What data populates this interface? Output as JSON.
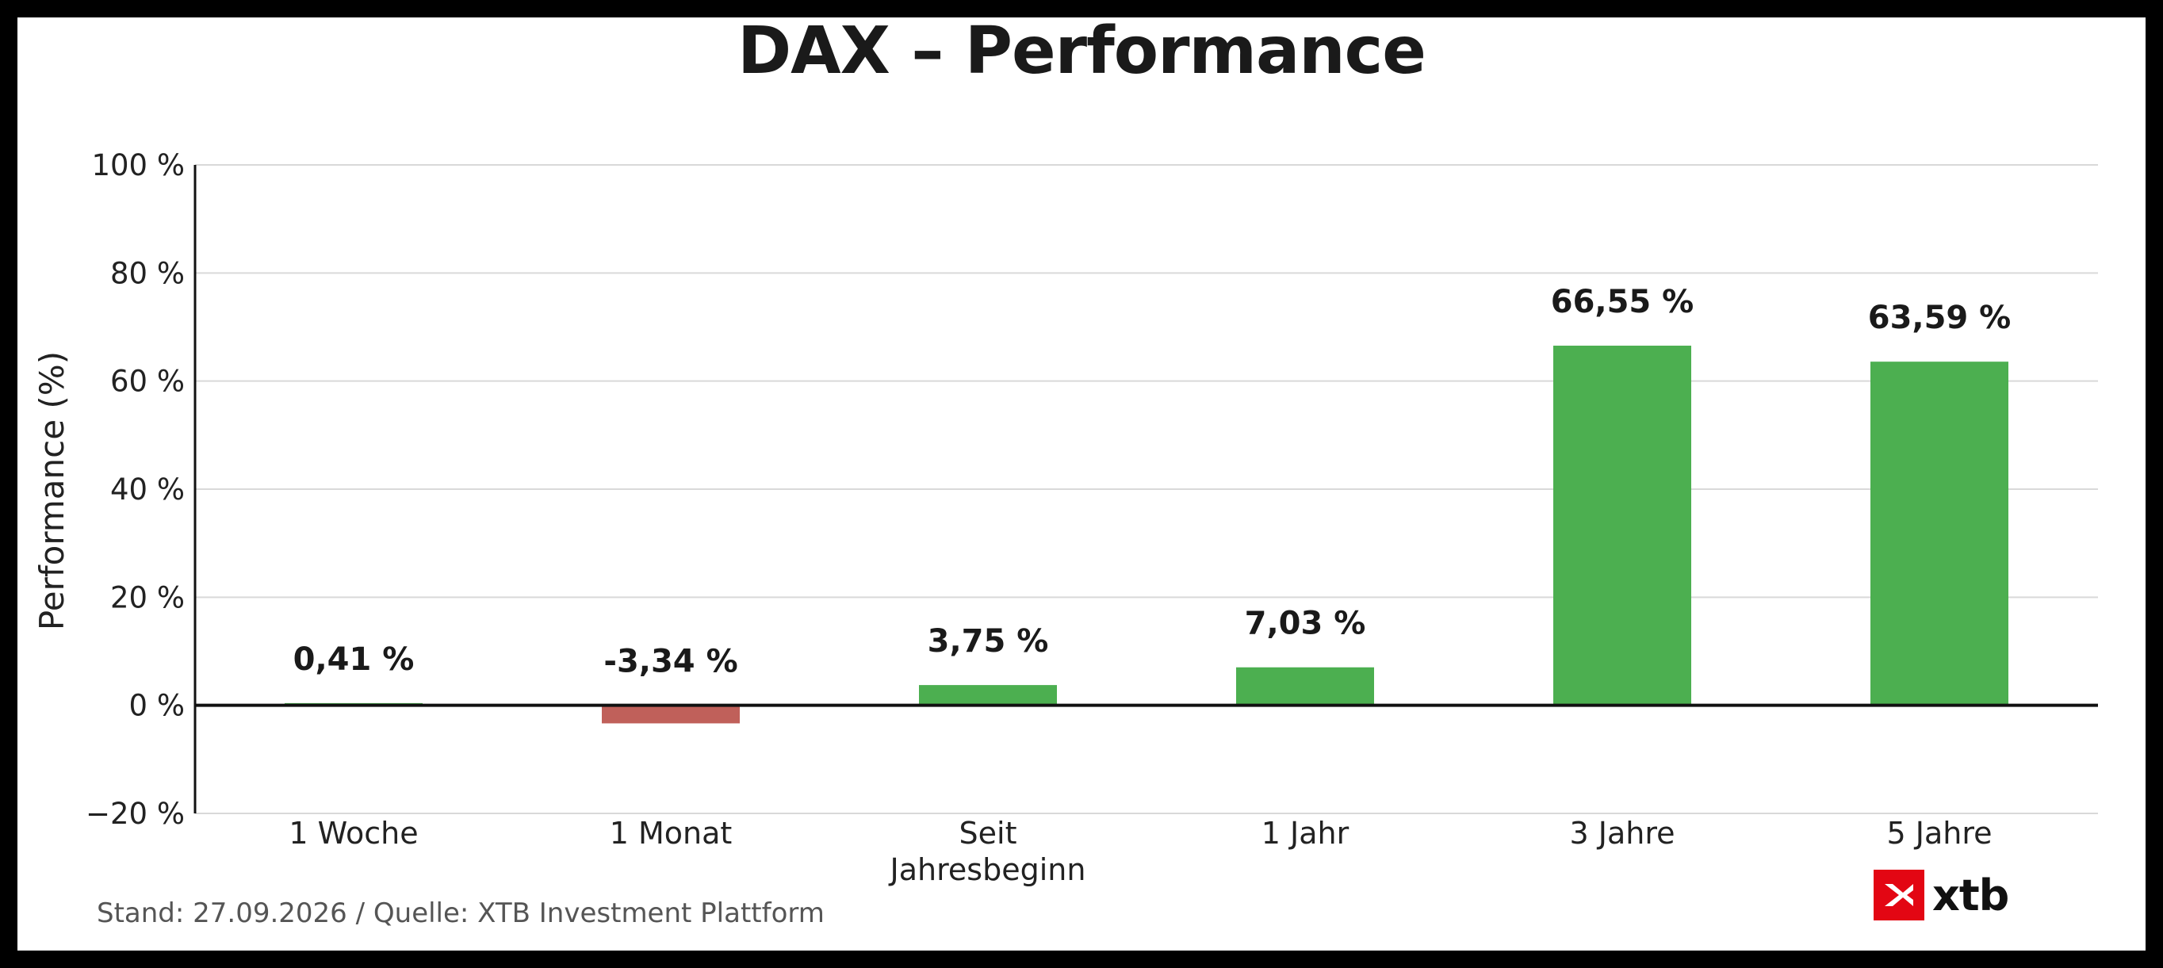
{
  "chart_data": {
    "type": "bar",
    "title": "DAX – Performance",
    "ylabel": "Performance (%)",
    "xlabel": "",
    "categories": [
      [
        "1 Woche"
      ],
      [
        "1 Monat"
      ],
      [
        "Seit",
        "Jahresbeginn"
      ],
      [
        "1 Jahr"
      ],
      [
        "3 Jahre"
      ],
      [
        "5 Jahre"
      ]
    ],
    "values": [
      0.41,
      -3.34,
      3.75,
      7.03,
      66.55,
      63.59
    ],
    "value_labels": [
      "0,41 %",
      "-3,34 %",
      "3,75 %",
      "7,03 %",
      "66,55 %",
      "63,59 %"
    ],
    "ylim": [
      -20,
      100
    ],
    "yticks": [
      -20,
      0,
      20,
      40,
      60,
      80,
      100
    ],
    "ytick_labels": [
      "−20 %",
      "0 %",
      "20 %",
      "40 %",
      "60 %",
      "80 %",
      "100 %"
    ],
    "grid": true,
    "colors": {
      "positive": "#4caf50",
      "negative": "#c0605a",
      "grid": "#d9d9d9",
      "axis": "#111111"
    }
  },
  "footer": {
    "source": "Stand: 27.09.2026 / Quelle: XTB Investment Plattform"
  },
  "logo": {
    "text": "xtb",
    "color": "#e30613"
  }
}
